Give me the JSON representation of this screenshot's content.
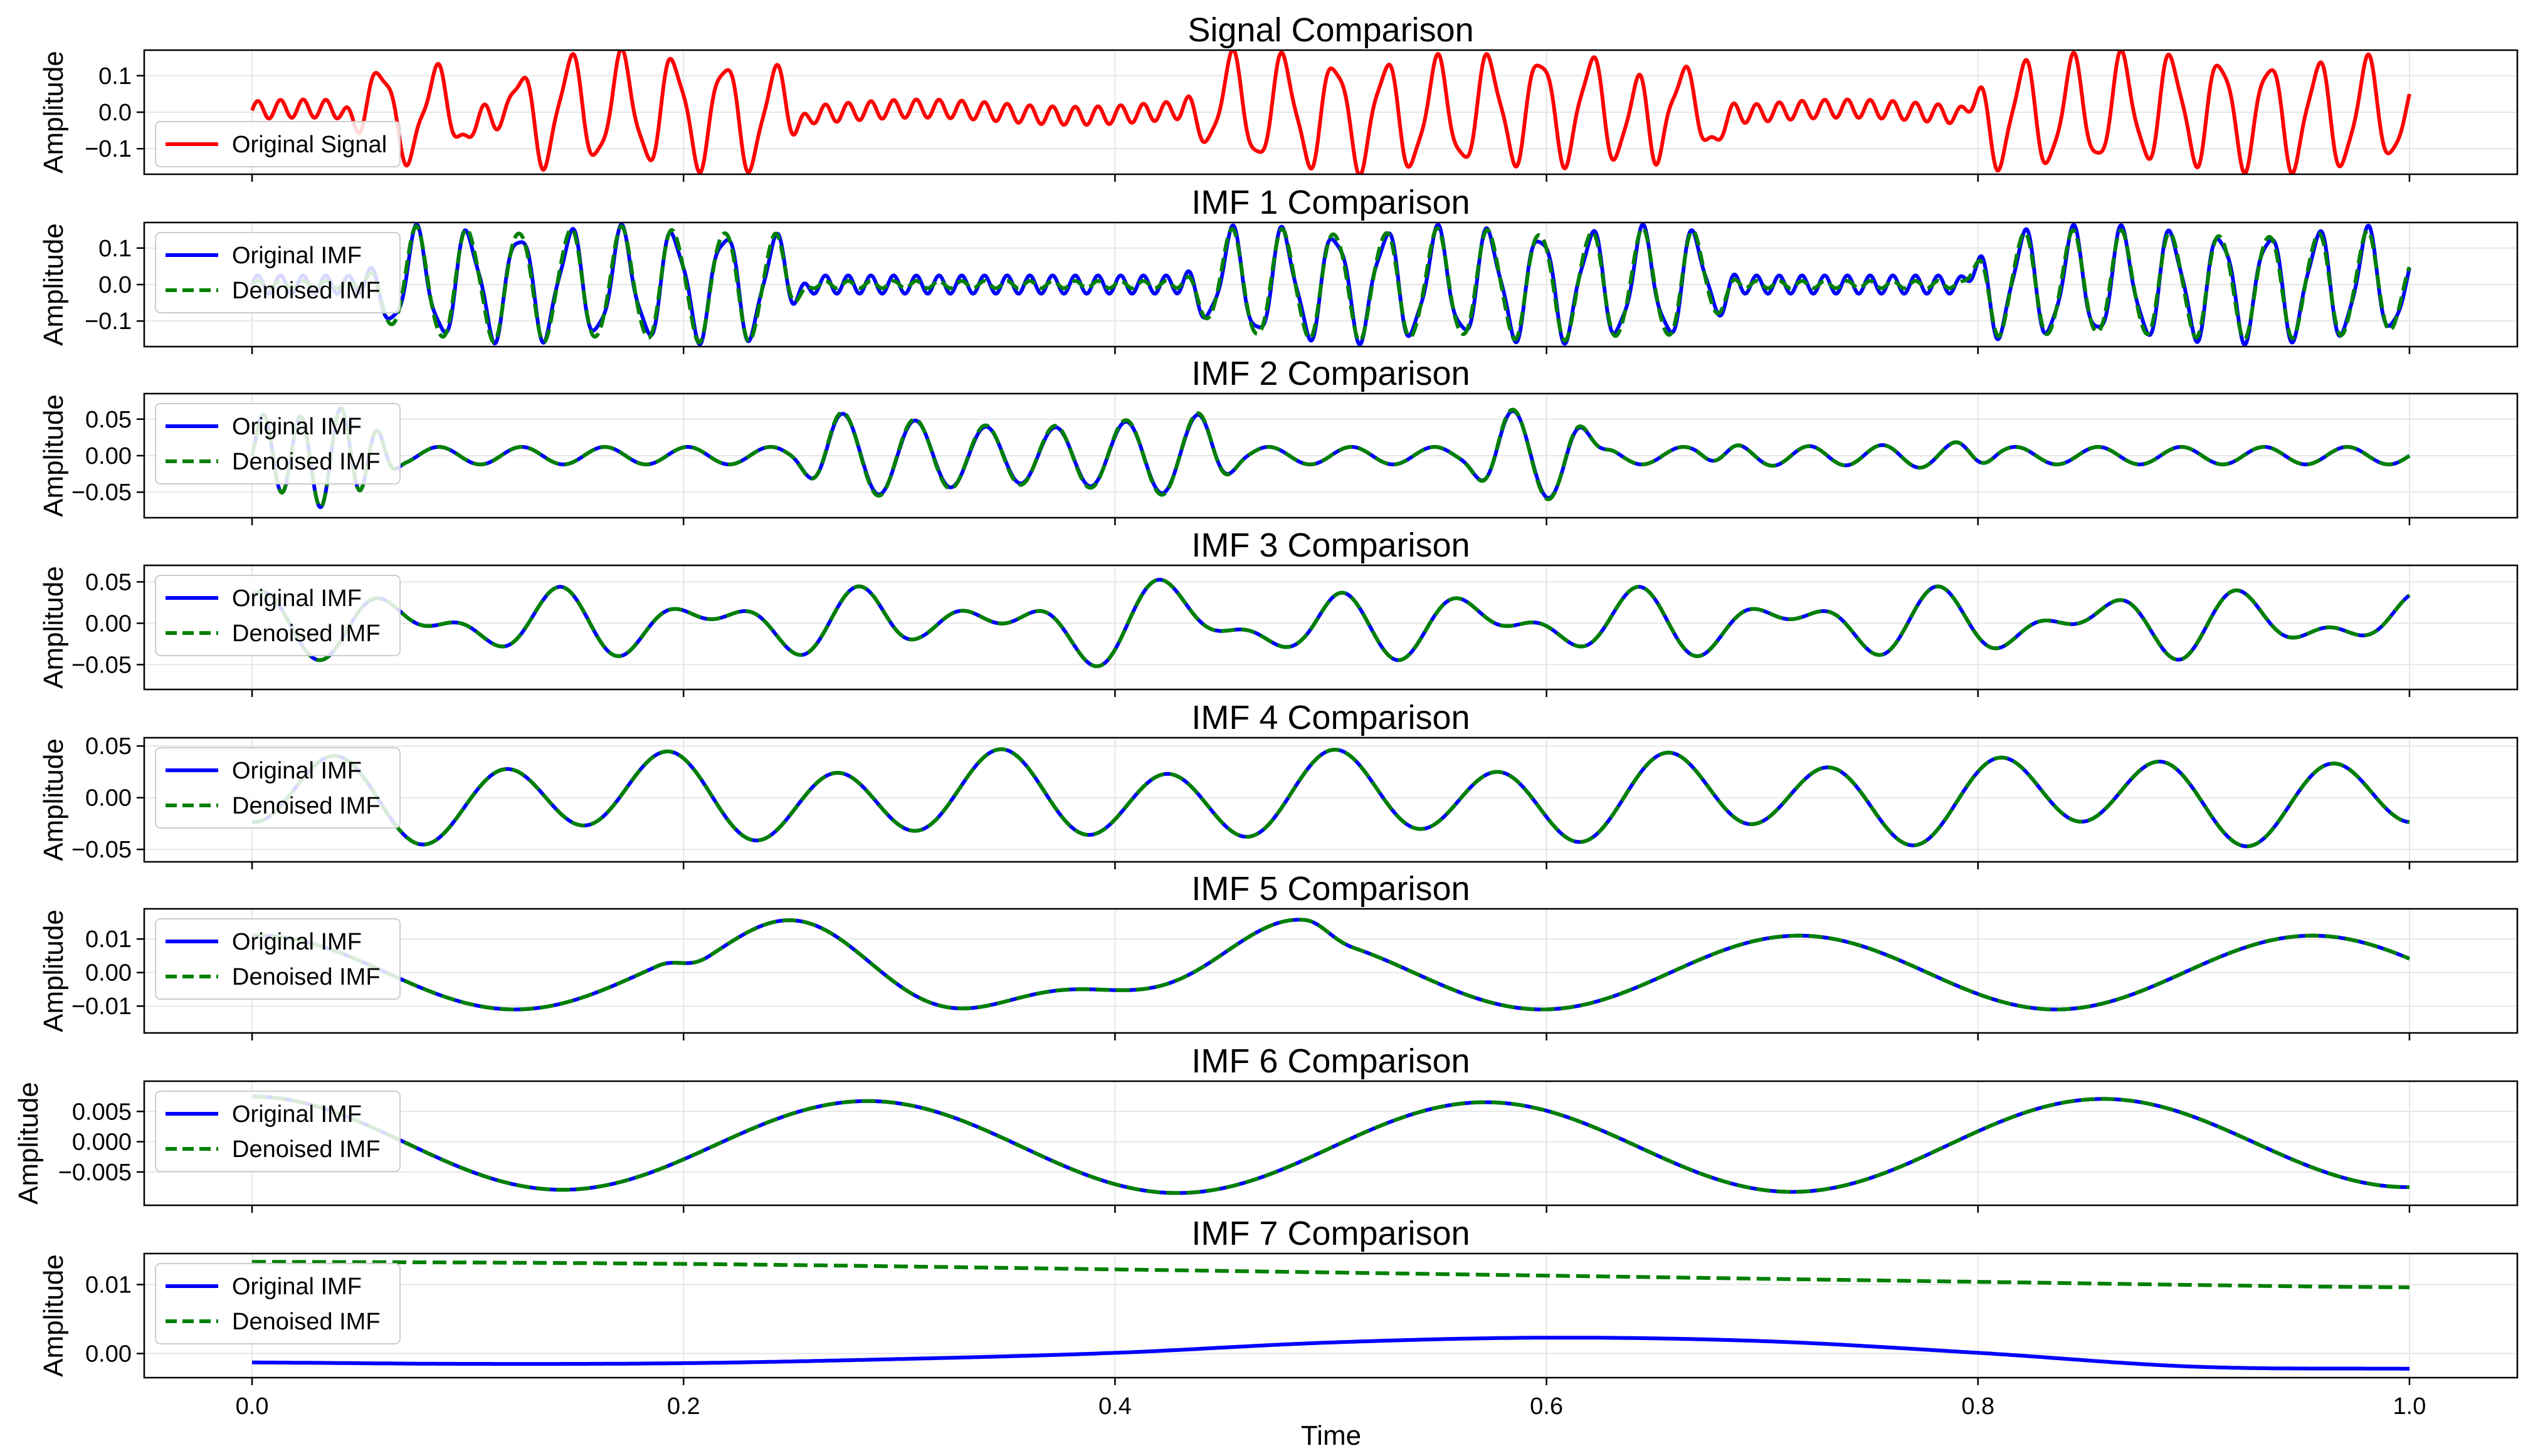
{
  "figure": {
    "xlabel": "Time"
  },
  "chart_data": [
    {
      "type": "line",
      "title": "Signal Comparison",
      "ylabel": "Amplitude",
      "xlim": [
        -0.05,
        1.05
      ],
      "ylim": [
        -0.17,
        0.17
      ],
      "yticks": [
        0.1,
        0.0,
        -0.1
      ],
      "ytick_labels": [
        "0.1",
        "0.0",
        "−0.1"
      ],
      "xticks": [
        0.0,
        0.2,
        0.4,
        0.6,
        0.8,
        1.0
      ],
      "grid": true,
      "legend_position": "lower left",
      "series": [
        {
          "name": "Original Signal",
          "color": "#ff0000",
          "style": "solid",
          "components": [
            {
              "amp": 0.14,
              "freq": 42,
              "phase": 0.3,
              "window": [
                0.12,
                0.25
              ]
            },
            {
              "amp": 0.14,
              "freq": 42,
              "phase": 1.1,
              "window": [
                0.44,
                0.65
              ]
            },
            {
              "amp": 0.14,
              "freq": 44,
              "phase": 0.7,
              "window": [
                0.8,
                1.0
              ]
            },
            {
              "amp": 0.12,
              "freq": 38,
              "phase": 0.0,
              "window": [
                0.05,
                0.1
              ]
            },
            {
              "amp": 0.12,
              "freq": 35,
              "phase": 0.2,
              "window": [
                0.64,
                0.68
              ]
            },
            {
              "amp": 0.025,
              "freq": 95,
              "phase": 0.0
            },
            {
              "amp": 0.01,
              "freq": 7,
              "phase": 0.5
            }
          ]
        }
      ]
    },
    {
      "type": "line",
      "title": "IMF 1 Comparison",
      "ylabel": "Amplitude",
      "xlim": [
        -0.05,
        1.05
      ],
      "ylim": [
        -0.17,
        0.17
      ],
      "yticks": [
        0.1,
        0.0,
        -0.1
      ],
      "ytick_labels": [
        "0.1",
        "0.0",
        "−0.1"
      ],
      "xticks": [
        0.0,
        0.2,
        0.4,
        0.6,
        0.8,
        1.0
      ],
      "grid": true,
      "legend_position": "upper left",
      "series": [
        {
          "name": "Original IMF",
          "color": "#0000ff",
          "style": "solid",
          "components": [
            {
              "amp": 0.14,
              "freq": 42,
              "phase": 0.3,
              "window": [
                0.06,
                0.25
              ]
            },
            {
              "amp": 0.14,
              "freq": 42,
              "phase": 1.1,
              "window": [
                0.44,
                0.68
              ]
            },
            {
              "amp": 0.14,
              "freq": 44,
              "phase": 0.7,
              "window": [
                0.8,
                1.0
              ]
            },
            {
              "amp": 0.025,
              "freq": 95,
              "phase": 0.0
            }
          ]
        },
        {
          "name": "Denoised IMF",
          "color": "#008000",
          "style": "dashed",
          "components": [
            {
              "amp": 0.15,
              "freq": 42,
              "phase": 0.35,
              "window": [
                0.06,
                0.25
              ]
            },
            {
              "amp": 0.145,
              "freq": 42,
              "phase": 1.15,
              "window": [
                0.44,
                0.68
              ]
            },
            {
              "amp": 0.14,
              "freq": 44,
              "phase": 0.75,
              "window": [
                0.8,
                1.0
              ]
            },
            {
              "amp": 0.01,
              "freq": 95,
              "phase": 0.0
            }
          ]
        }
      ]
    },
    {
      "type": "line",
      "title": "IMF 2 Comparison",
      "ylabel": "Amplitude",
      "xlim": [
        -0.05,
        1.05
      ],
      "ylim": [
        -0.085,
        0.085
      ],
      "yticks": [
        0.05,
        0.0,
        -0.05
      ],
      "ytick_labels": [
        "0.05",
        "0.00",
        "−0.05"
      ],
      "xticks": [
        0.0,
        0.2,
        0.4,
        0.6,
        0.8,
        1.0
      ],
      "grid": true,
      "legend_position": "upper left",
      "series": [
        {
          "name": "Original IMF",
          "color": "#0000ff",
          "style": "solid",
          "components": [
            {
              "amp": 0.012,
              "freq": 26,
              "phase": 0.0
            },
            {
              "amp": 0.05,
              "freq": 30,
              "phase": 0.4,
              "window": [
                0.26,
                0.45
              ]
            },
            {
              "amp": 0.05,
              "freq": 31,
              "phase": 0.9,
              "window": [
                0.57,
                0.62
              ]
            },
            {
              "amp": 0.025,
              "freq": 28,
              "phase": 0.3,
              "window": [
                0.68,
                0.8
              ]
            },
            {
              "amp": 0.06,
              "freq": 55,
              "phase": 0.0,
              "window": [
                0.0,
                0.06
              ]
            }
          ]
        },
        {
          "name": "Denoised IMF",
          "color": "#008000",
          "style": "dashed",
          "components": [
            {
              "amp": 0.012,
              "freq": 26,
              "phase": 0.0
            },
            {
              "amp": 0.052,
              "freq": 30,
              "phase": 0.42,
              "window": [
                0.26,
                0.45
              ]
            },
            {
              "amp": 0.052,
              "freq": 31,
              "phase": 0.92,
              "window": [
                0.57,
                0.62
              ]
            },
            {
              "amp": 0.025,
              "freq": 28,
              "phase": 0.3,
              "window": [
                0.68,
                0.8
              ]
            },
            {
              "amp": 0.06,
              "freq": 55,
              "phase": 0.0,
              "window": [
                0.0,
                0.06
              ]
            }
          ]
        }
      ]
    },
    {
      "type": "line",
      "title": "IMF 3 Comparison",
      "ylabel": "Amplitude",
      "xlim": [
        -0.05,
        1.05
      ],
      "ylim": [
        -0.08,
        0.07
      ],
      "yticks": [
        0.05,
        0.0,
        -0.05
      ],
      "ytick_labels": [
        "0.05",
        "0.00",
        "−0.05"
      ],
      "xticks": [
        0.0,
        0.2,
        0.4,
        0.6,
        0.8,
        1.0
      ],
      "grid": true,
      "legend_position": "upper left",
      "series": [
        {
          "name": "Original IMF",
          "color": "#0000ff",
          "style": "solid",
          "components": [
            {
              "amp": 0.025,
              "freq": 14,
              "phase": 1.8
            },
            {
              "amp": 0.02,
              "freq": 22,
              "phase": 0.5
            },
            {
              "amp": 0.015,
              "freq": 9,
              "phase": 2.4,
              "window": [
                0.3,
                0.5
              ]
            }
          ]
        },
        {
          "name": "Denoised IMF",
          "color": "#008000",
          "style": "dashed",
          "components": [
            {
              "amp": 0.025,
              "freq": 14,
              "phase": 1.8
            },
            {
              "amp": 0.02,
              "freq": 22,
              "phase": 0.5
            },
            {
              "amp": 0.015,
              "freq": 9,
              "phase": 2.4,
              "window": [
                0.3,
                0.5
              ]
            }
          ]
        }
      ]
    },
    {
      "type": "line",
      "title": "IMF 4 Comparison",
      "ylabel": "Amplitude",
      "xlim": [
        -0.05,
        1.05
      ],
      "ylim": [
        -0.062,
        0.058
      ],
      "yticks": [
        0.05,
        0.0,
        -0.05
      ],
      "ytick_labels": [
        "0.05",
        "0.00",
        "−0.05"
      ],
      "xticks": [
        0.0,
        0.2,
        0.4,
        0.6,
        0.8,
        1.0
      ],
      "grid": true,
      "legend_position": "upper left",
      "series": [
        {
          "name": "Original IMF",
          "color": "#0000ff",
          "style": "solid",
          "components": [
            {
              "amp": 0.035,
              "freq": 13,
              "phase": 4.6
            },
            {
              "amp": 0.012,
              "freq": 6,
              "phase": 1.2
            }
          ]
        },
        {
          "name": "Denoised IMF",
          "color": "#008000",
          "style": "dashed",
          "components": [
            {
              "amp": 0.035,
              "freq": 13,
              "phase": 4.6
            },
            {
              "amp": 0.012,
              "freq": 6,
              "phase": 1.2
            }
          ]
        }
      ]
    },
    {
      "type": "line",
      "title": "IMF 5 Comparison",
      "ylabel": "Amplitude",
      "xlim": [
        -0.05,
        1.05
      ],
      "ylim": [
        -0.018,
        0.019
      ],
      "yticks": [
        0.01,
        0.0,
        -0.01
      ],
      "ytick_labels": [
        "0.01",
        "0.00",
        "−0.01"
      ],
      "xticks": [
        0.0,
        0.2,
        0.4,
        0.6,
        0.8,
        1.0
      ],
      "grid": true,
      "legend_position": "upper left",
      "series": [
        {
          "name": "Original IMF",
          "color": "#0000ff",
          "style": "solid",
          "components": [
            {
              "amp": 0.011,
              "freq": 4.2,
              "phase": 1.5
            },
            {
              "amp": 0.005,
              "freq": 8.5,
              "phase": 0.6,
              "window": [
                0.2,
                0.5
              ]
            }
          ]
        },
        {
          "name": "Denoised IMF",
          "color": "#008000",
          "style": "dashed",
          "components": [
            {
              "amp": 0.011,
              "freq": 4.2,
              "phase": 1.5
            },
            {
              "amp": 0.005,
              "freq": 8.5,
              "phase": 0.6,
              "window": [
                0.2,
                0.5
              ]
            }
          ]
        }
      ]
    },
    {
      "type": "line",
      "title": "IMF 6 Comparison",
      "ylabel": "Amplitude",
      "xlim": [
        -0.05,
        1.05
      ],
      "ylim": [
        -0.0105,
        0.01
      ],
      "yticks": [
        0.005,
        0.0,
        -0.005
      ],
      "ytick_labels": [
        "0.005",
        "0.000",
        "−0.005"
      ],
      "xticks": [
        0.0,
        0.2,
        0.4,
        0.6,
        0.8,
        1.0
      ],
      "grid": true,
      "legend_position": "upper left",
      "series": [
        {
          "name": "Original IMF",
          "color": "#0000ff",
          "style": "solid",
          "components": [
            {
              "amp": 0.0075,
              "freq": 3.5,
              "phase": 1.57
            },
            {
              "amp": -0.001,
              "freq": 0.5,
              "phase": 0.0
            }
          ]
        },
        {
          "name": "Denoised IMF",
          "color": "#008000",
          "style": "dashed",
          "components": [
            {
              "amp": 0.0075,
              "freq": 3.5,
              "phase": 1.57
            },
            {
              "amp": -0.001,
              "freq": 0.5,
              "phase": 0.0
            }
          ]
        }
      ]
    },
    {
      "type": "line",
      "title": "IMF 7 Comparison",
      "ylabel": "Amplitude",
      "xlim": [
        -0.05,
        1.05
      ],
      "ylim": [
        -0.0035,
        0.0145
      ],
      "yticks": [
        0.01,
        0.0
      ],
      "ytick_labels": [
        "0.01",
        "0.00"
      ],
      "xticks": [
        0.0,
        0.2,
        0.4,
        0.6,
        0.8,
        1.0
      ],
      "xtick_labels": [
        "0.0",
        "0.2",
        "0.4",
        "0.6",
        "0.8",
        "1.0"
      ],
      "grid": true,
      "legend_position": "upper left",
      "series": [
        {
          "name": "Original IMF",
          "color": "#0000ff",
          "style": "solid",
          "points": {
            "x": [
              0.0,
              0.1,
              0.2,
              0.3,
              0.4,
              0.5,
              0.6,
              0.7,
              0.8,
              0.9,
              1.0
            ],
            "y": [
              -0.0013,
              -0.0015,
              -0.0014,
              -0.0008,
              0.0001,
              0.0016,
              0.0023,
              0.0018,
              0.0001,
              -0.0019,
              -0.0022
            ]
          }
        },
        {
          "name": "Denoised IMF",
          "color": "#008000",
          "style": "dashed",
          "points": {
            "x": [
              0.0,
              0.2,
              0.4,
              0.6,
              0.8,
              1.0
            ],
            "y": [
              0.0133,
              0.013,
              0.0122,
              0.0113,
              0.0104,
              0.0096
            ]
          }
        }
      ]
    }
  ]
}
